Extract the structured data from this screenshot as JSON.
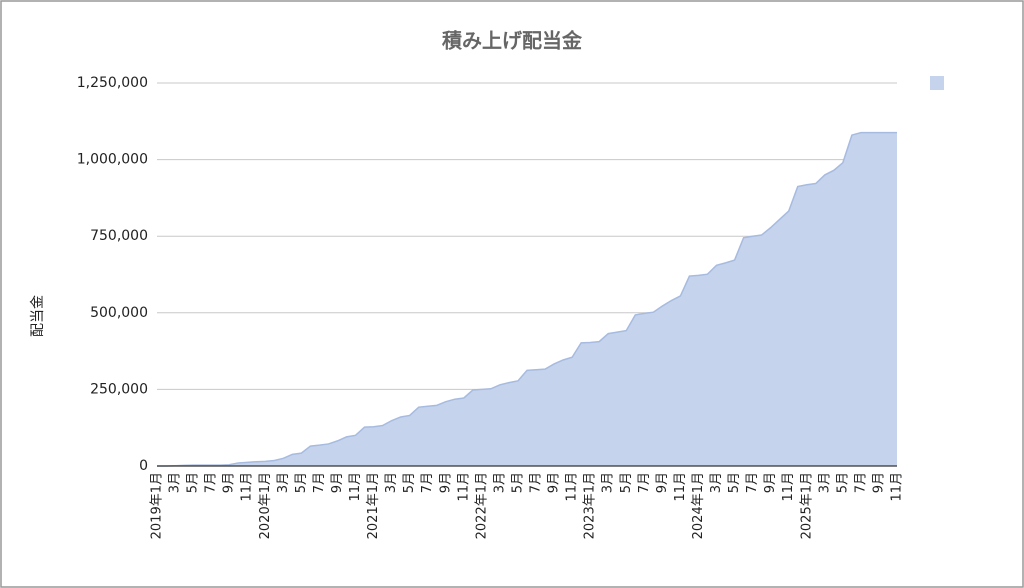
{
  "chart_data": {
    "type": "area",
    "title": "積み上げ配当金",
    "y_label": "配当金",
    "categories": [
      "2019年1月",
      null,
      "3月",
      null,
      "5月",
      null,
      "7月",
      null,
      "9月",
      null,
      "11月",
      null,
      "2020年1月",
      null,
      "3月",
      null,
      "5月",
      null,
      "7月",
      null,
      "9月",
      null,
      "11月",
      null,
      "2021年1月",
      null,
      "3月",
      null,
      "5月",
      null,
      "7月",
      null,
      "9月",
      null,
      "11月",
      null,
      "2022年1月",
      null,
      "3月",
      null,
      "5月",
      null,
      "7月",
      null,
      "9月",
      null,
      "11月",
      null,
      "2023年1月",
      null,
      "3月",
      null,
      "5月",
      null,
      "7月",
      null,
      "9月",
      null,
      "11月",
      null,
      "2024年1月",
      null,
      "3月",
      null,
      "5月",
      null,
      "7月",
      null,
      "9月",
      null,
      "11月",
      null,
      "2025年1月",
      null,
      "3月",
      null,
      "5月",
      null,
      "7月",
      null,
      "9月",
      null,
      "11月"
    ],
    "values": [
      0,
      0,
      1000,
      2000,
      3000,
      3000,
      3000,
      3000,
      4000,
      10000,
      12000,
      14000,
      15000,
      18000,
      25000,
      38000,
      42000,
      65000,
      68000,
      72000,
      82000,
      95000,
      100000,
      127000,
      128000,
      132000,
      148000,
      160000,
      165000,
      192000,
      195000,
      198000,
      210000,
      218000,
      222000,
      248000,
      250000,
      252000,
      265000,
      272000,
      278000,
      312000,
      314000,
      316000,
      333000,
      346000,
      355000,
      402000,
      403000,
      406000,
      432000,
      437000,
      442000,
      493000,
      498000,
      502000,
      522000,
      540000,
      555000,
      620000,
      622000,
      626000,
      655000,
      663000,
      672000,
      745000,
      750000,
      754000,
      778000,
      805000,
      832000,
      912000,
      918000,
      922000,
      950000,
      965000,
      990000,
      1080000,
      1088000,
      1088000,
      1088000,
      1088000,
      1088000
    ],
    "color": "#c5d3ec",
    "ylim": [
      0,
      1250000
    ],
    "yticks": [
      0,
      {
        "value": 250000,
        "label": "250,000"
      },
      {
        "value": 500000,
        "label": "500,000"
      },
      {
        "value": 750000,
        "label": "750,000"
      },
      {
        "value": 1000000,
        "label": "1,000,000"
      },
      {
        "value": 1250000,
        "label": "1,250,000"
      }
    ],
    "grid": true,
    "legend": "top-right"
  }
}
